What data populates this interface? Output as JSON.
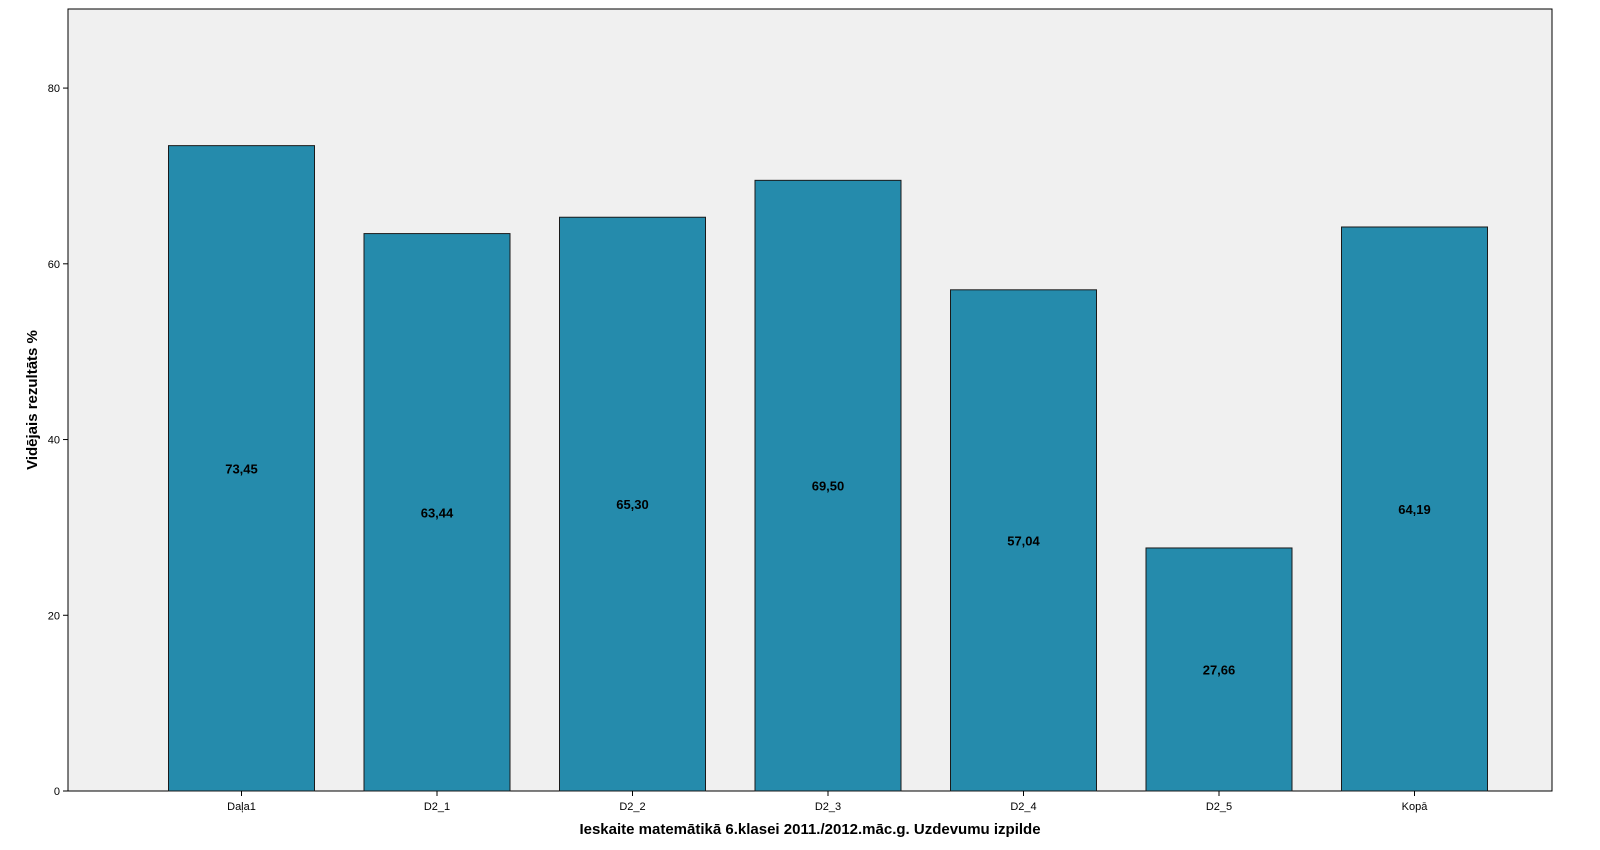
{
  "chart_data": {
    "type": "bar",
    "categories": [
      "Daļa1",
      "D2_1",
      "D2_2",
      "D2_3",
      "D2_4",
      "D2_5",
      "Kopā"
    ],
    "values": [
      73.45,
      63.44,
      65.3,
      69.5,
      57.04,
      27.66,
      64.19
    ],
    "data_labels": [
      "73,45",
      "63,44",
      "65,30",
      "69,50",
      "57,04",
      "27,66",
      "64,19"
    ],
    "title": "",
    "xlabel": "Ieskaite matemātikā 6.klasei 2011./2012.māc.g. Uzdevumu izpilde",
    "ylabel": "Vidējais rezultāts %",
    "ylim": [
      0,
      89
    ],
    "yticks": [
      0,
      20,
      40,
      60,
      80
    ],
    "grid": false,
    "legend": "none",
    "colors": {
      "bar_fill": "#258bac",
      "bar_stroke": "#1a1a1a",
      "plot_background": "#f0f0f0",
      "axis": "#000000"
    }
  }
}
